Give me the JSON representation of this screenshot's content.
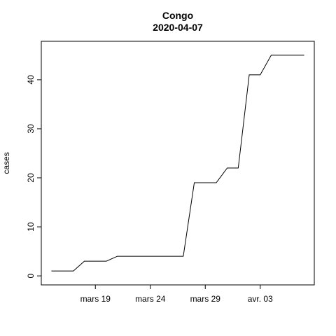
{
  "chart_data": {
    "type": "line",
    "title": "Congo",
    "subtitle": "2020-04-07",
    "xlabel": "",
    "ylabel": "cases",
    "x": [
      "2020-03-15",
      "2020-03-16",
      "2020-03-17",
      "2020-03-18",
      "2020-03-19",
      "2020-03-20",
      "2020-03-21",
      "2020-03-22",
      "2020-03-23",
      "2020-03-24",
      "2020-03-25",
      "2020-03-26",
      "2020-03-27",
      "2020-03-28",
      "2020-03-29",
      "2020-03-30",
      "2020-03-31",
      "2020-04-01",
      "2020-04-02",
      "2020-04-03",
      "2020-04-04",
      "2020-04-05",
      "2020-04-06",
      "2020-04-07"
    ],
    "series": [
      {
        "values": [
          1,
          1,
          1,
          3,
          3,
          3,
          4,
          4,
          4,
          4,
          4,
          4,
          4,
          19,
          19,
          19,
          22,
          22,
          41,
          41,
          45,
          45,
          45,
          45
        ]
      }
    ],
    "ylim": [
      0,
      46
    ],
    "yticks": [
      0,
      10,
      20,
      30,
      40
    ],
    "xticks": [
      {
        "date": "2020-03-19",
        "label": "mars 19"
      },
      {
        "date": "2020-03-24",
        "label": "mars 24"
      },
      {
        "date": "2020-03-29",
        "label": "mars 29"
      },
      {
        "date": "2020-04-03",
        "label": "avr. 03"
      }
    ],
    "grid": false,
    "line_color": "#000000"
  }
}
